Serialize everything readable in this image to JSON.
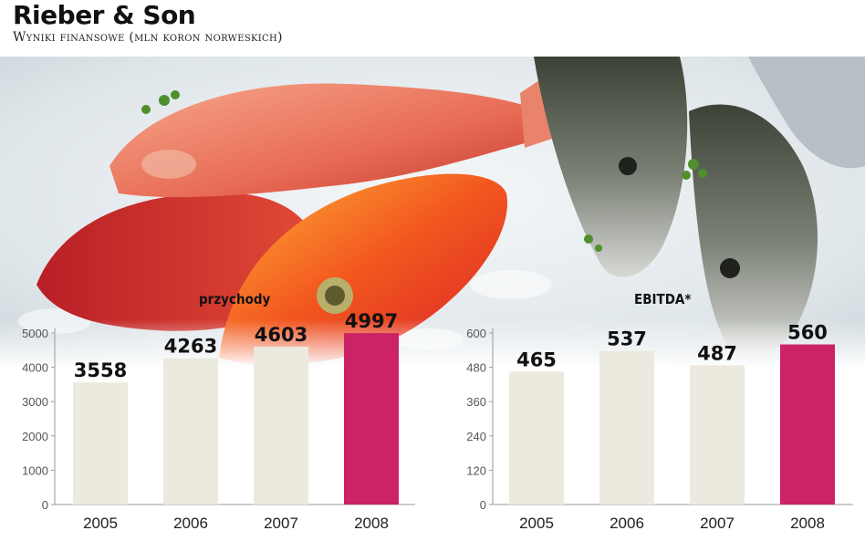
{
  "header": {
    "title": "Rieber & Son",
    "subtitle": "Wyniki finansowe (mln koron norweskich)"
  },
  "colors": {
    "bar_default": "#ece9de",
    "bar_highlight": "#cc2266",
    "axis": "#999999"
  },
  "chart_data": [
    {
      "type": "bar",
      "title": "przychody",
      "categories": [
        "2005",
        "2006",
        "2007",
        "2008"
      ],
      "values": [
        3558,
        4263,
        4603,
        4997
      ],
      "yticks": [
        0,
        1000,
        2000,
        3000,
        4000,
        5000
      ],
      "ylim": [
        0,
        5000
      ],
      "highlight_index": 3
    },
    {
      "type": "bar",
      "title": "EBITDA*",
      "categories": [
        "2005",
        "2006",
        "2007",
        "2008"
      ],
      "values": [
        465,
        537,
        487,
        560
      ],
      "yticks": [
        0,
        120,
        240,
        360,
        480,
        600
      ],
      "ylim": [
        0,
        600
      ],
      "highlight_index": 3
    }
  ]
}
